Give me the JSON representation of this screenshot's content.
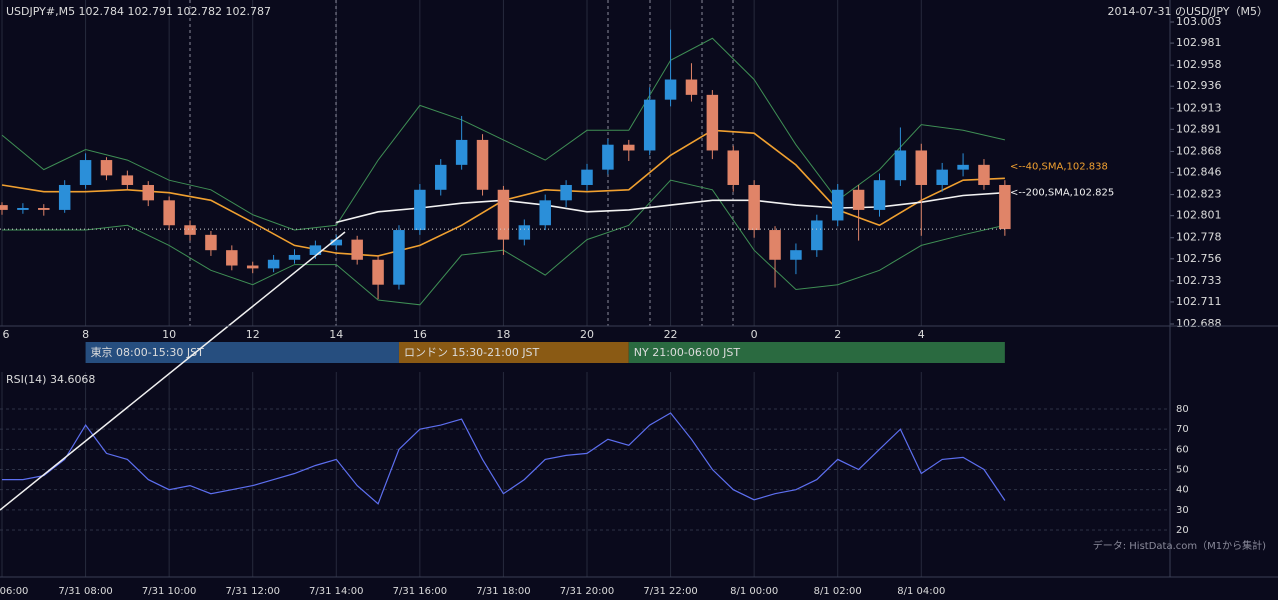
{
  "header": "USDJPY#,M5 102.784 102.791 102.782 102.787",
  "title": "2014-07-31 のUSD/JPY（M5）",
  "source": "データ: HistData.com（M1から集計)",
  "chart_data": [
    {
      "type": "candlestick",
      "x": [
        0,
        0.5,
        1,
        1.5,
        2,
        2.5,
        3,
        3.5,
        4,
        4.5,
        5,
        5.5,
        6,
        6.5,
        7,
        7.5,
        8,
        8.5,
        9,
        9.5,
        10,
        10.5,
        11,
        11.5,
        12,
        12.5,
        13,
        13.5,
        14,
        14.5,
        15,
        15.5,
        16,
        16.5,
        17,
        17.5,
        18,
        18.5,
        19,
        19.5,
        20,
        20.5,
        21,
        21.5,
        22,
        22.5,
        23,
        23.5,
        24
      ],
      "open": [
        102.812,
        102.807,
        102.809,
        102.807,
        102.833,
        102.859,
        102.843,
        102.833,
        102.817,
        102.791,
        102.781,
        102.765,
        102.749,
        102.746,
        102.755,
        102.76,
        102.77,
        102.776,
        102.755,
        102.729,
        102.786,
        102.828,
        102.854,
        102.88,
        102.828,
        102.776,
        102.791,
        102.817,
        102.833,
        102.849,
        102.875,
        102.869,
        102.922,
        102.943,
        102.927,
        102.869,
        102.833,
        102.786,
        102.755,
        102.765,
        102.796,
        102.828,
        102.807,
        102.838,
        102.869,
        102.833,
        102.849,
        102.854,
        102.833
      ],
      "high": [
        102.815,
        102.814,
        102.813,
        102.838,
        102.866,
        102.862,
        102.848,
        102.837,
        102.821,
        102.796,
        102.785,
        102.77,
        102.753,
        102.76,
        102.766,
        102.775,
        102.781,
        102.78,
        102.759,
        102.791,
        102.834,
        102.86,
        102.905,
        102.886,
        102.832,
        102.797,
        102.823,
        102.838,
        102.855,
        102.881,
        102.88,
        102.935,
        102.995,
        102.96,
        102.932,
        102.874,
        102.838,
        102.79,
        102.772,
        102.802,
        102.834,
        102.833,
        102.845,
        102.893,
        102.876,
        102.856,
        102.866,
        102.86,
        102.838
      ],
      "low": [
        102.802,
        102.803,
        102.801,
        102.804,
        102.829,
        102.838,
        102.828,
        102.811,
        102.786,
        102.775,
        102.759,
        102.744,
        102.741,
        102.742,
        102.751,
        102.756,
        102.765,
        102.75,
        102.714,
        102.724,
        102.781,
        102.822,
        102.849,
        102.822,
        102.76,
        102.77,
        102.786,
        102.81,
        102.827,
        102.844,
        102.858,
        102.864,
        102.915,
        102.92,
        102.86,
        102.826,
        102.778,
        102.726,
        102.74,
        102.758,
        102.79,
        102.775,
        102.8,
        102.832,
        102.78,
        102.826,
        102.842,
        102.828,
        102.78
      ],
      "close": [
        102.807,
        102.809,
        102.807,
        102.833,
        102.859,
        102.843,
        102.833,
        102.817,
        102.791,
        102.781,
        102.765,
        102.749,
        102.746,
        102.755,
        102.76,
        102.77,
        102.776,
        102.755,
        102.729,
        102.786,
        102.828,
        102.854,
        102.88,
        102.828,
        102.776,
        102.791,
        102.817,
        102.833,
        102.849,
        102.875,
        102.869,
        102.922,
        102.943,
        102.927,
        102.869,
        102.833,
        102.786,
        102.755,
        102.765,
        102.796,
        102.828,
        102.807,
        102.838,
        102.869,
        102.833,
        102.849,
        102.854,
        102.833,
        102.787
      ],
      "up_color": "#2b8fd9",
      "down_color": "#e08468",
      "overlay_x": [
        0,
        1,
        2,
        3,
        4,
        5,
        6,
        7,
        8,
        9,
        10,
        11,
        12,
        13,
        14,
        15,
        16,
        17,
        18,
        19,
        20,
        21,
        22,
        23,
        24
      ],
      "overlays": [
        {
          "color": "#3f8f55",
          "values": [
            102.885,
            102.849,
            102.87,
            102.859,
            102.838,
            102.828,
            102.802,
            102.786,
            102.791,
            102.859,
            102.916,
            102.901,
            102.88,
            102.859,
            102.89,
            102.89,
            102.963,
            102.986,
            102.943,
            102.875,
            102.817,
            102.849,
            102.896,
            102.89,
            102.88
          ]
        },
        {
          "color": "#3f8f55",
          "values": [
            102.786,
            102.786,
            102.786,
            102.791,
            102.77,
            102.744,
            102.729,
            102.75,
            102.75,
            102.713,
            102.708,
            102.76,
            102.765,
            102.739,
            102.776,
            102.791,
            102.838,
            102.828,
            102.765,
            102.724,
            102.729,
            102.744,
            102.77,
            102.781,
            102.791
          ]
        },
        {
          "color": "#f0a030",
          "label": "<--40,SMA,102.838",
          "values": [
            102.833,
            102.826,
            102.826,
            102.828,
            102.825,
            102.817,
            102.794,
            102.77,
            102.762,
            102.759,
            102.77,
            102.791,
            102.817,
            102.828,
            102.826,
            102.828,
            102.864,
            102.89,
            102.887,
            102.854,
            102.807,
            102.791,
            102.817,
            102.838,
            102.84
          ]
        },
        {
          "color": "#f2f2f2",
          "label": "<--200,SMA,102.825",
          "values": [
            null,
            null,
            null,
            null,
            null,
            null,
            null,
            null,
            102.794,
            102.805,
            102.809,
            102.814,
            102.817,
            102.812,
            102.805,
            102.807,
            102.812,
            102.817,
            102.817,
            102.812,
            102.809,
            102.81,
            102.815,
            102.822,
            102.825
          ]
        }
      ],
      "last_price": 102.787,
      "ylim": [
        102.688,
        103.003
      ],
      "yticks": [
        102.688,
        102.711,
        102.733,
        102.756,
        102.778,
        102.801,
        102.823,
        102.846,
        102.868,
        102.891,
        102.913,
        102.936,
        102.958,
        102.981,
        103.003
      ],
      "xlim": [
        0,
        28
      ],
      "xticks": [
        {
          "value": 0,
          "label": "6"
        },
        {
          "value": 2,
          "label": "8"
        },
        {
          "value": 4,
          "label": "10"
        },
        {
          "value": 6,
          "label": "12"
        },
        {
          "value": 8,
          "label": "14"
        },
        {
          "value": 10,
          "label": "16"
        },
        {
          "value": 12,
          "label": "18"
        },
        {
          "value": 14,
          "label": "20"
        },
        {
          "value": 16,
          "label": "22"
        },
        {
          "value": 18,
          "label": "0"
        },
        {
          "value": 20,
          "label": "2"
        },
        {
          "value": 22,
          "label": "4"
        }
      ],
      "sessions": [
        {
          "label": "東京 08:00-15:30 JST",
          "start": 2,
          "end": 9.5,
          "color": "#264e7f"
        },
        {
          "label": "ロンドン 15:30-21:00 JST",
          "start": 9.5,
          "end": 15,
          "color": "#8a5a14"
        },
        {
          "label": "NY 21:00-06:00 JST",
          "start": 15,
          "end": 24,
          "color": "#2a6a40"
        }
      ]
    },
    {
      "type": "line",
      "title": "RSI(14) 34.6068",
      "color": "#5d6ff0",
      "x": [
        0,
        0.5,
        1,
        1.5,
        2,
        2.5,
        3,
        3.5,
        4,
        4.5,
        5,
        5.5,
        6,
        6.5,
        7,
        7.5,
        8,
        8.5,
        9,
        9.5,
        10,
        10.5,
        11,
        11.5,
        12,
        12.5,
        13,
        13.5,
        14,
        14.5,
        15,
        15.5,
        16,
        16.5,
        17,
        17.5,
        18,
        18.5,
        19,
        19.5,
        20,
        20.5,
        21,
        21.5,
        22,
        22.5,
        23,
        23.5,
        24
      ],
      "values": [
        45,
        45,
        47,
        55,
        72,
        58,
        55,
        45,
        40,
        42,
        38,
        40,
        42,
        45,
        48,
        52,
        55,
        42,
        33,
        60,
        70,
        72,
        75,
        55,
        38,
        45,
        55,
        57,
        58,
        65,
        62,
        72,
        78,
        65,
        50,
        40,
        35,
        38,
        40,
        45,
        55,
        50,
        60,
        70,
        48,
        55,
        56,
        50,
        34.6068
      ],
      "ylim": [
        20,
        80
      ],
      "yticks": [
        20,
        30,
        40,
        50,
        60,
        70,
        80
      ],
      "xlim": [
        0,
        28
      ],
      "xticks": [
        {
          "value": 0,
          "label": "06:00"
        },
        {
          "value": 2,
          "label": "7/31 08:00"
        },
        {
          "value": 4,
          "label": "7/31 10:00"
        },
        {
          "value": 6,
          "label": "7/31 12:00"
        },
        {
          "value": 8,
          "label": "7/31 14:00"
        },
        {
          "value": 10,
          "label": "7/31 16:00"
        },
        {
          "value": 12,
          "label": "7/31 18:00"
        },
        {
          "value": 14,
          "label": "7/31 20:00"
        },
        {
          "value": 16,
          "label": "7/31 22:00"
        },
        {
          "value": 18,
          "label": "8/1 00:00"
        },
        {
          "value": 20,
          "label": "8/1 02:00"
        },
        {
          "value": 22,
          "label": "8/1 04:00"
        }
      ]
    }
  ]
}
